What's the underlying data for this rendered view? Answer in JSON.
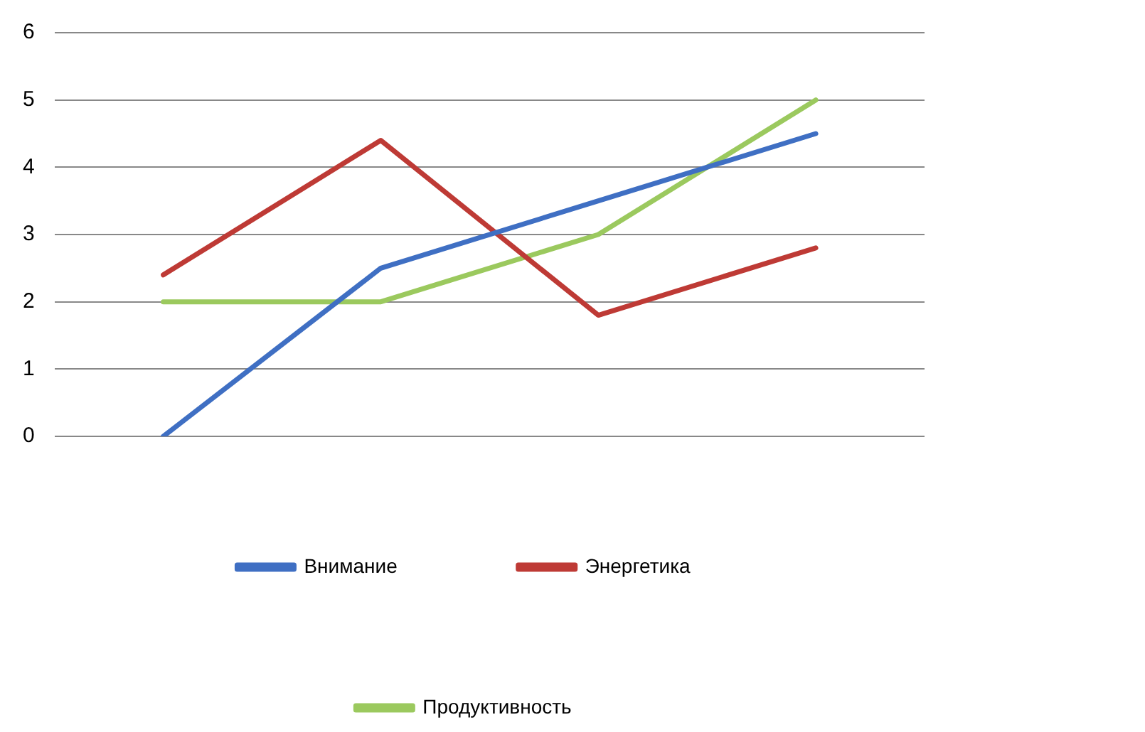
{
  "chart_data": {
    "type": "line",
    "categories": [
      null,
      null,
      null,
      null
    ],
    "series": [
      {
        "name": "Внимание",
        "color": "#3f6fc3",
        "values": [
          0,
          2.5,
          3.5,
          4.5
        ]
      },
      {
        "name": "Энергетика",
        "color": "#be3a35",
        "values": [
          2.4,
          4.4,
          1.8,
          2.8
        ]
      },
      {
        "name": "Продуктивность",
        "color": "#9bc95e",
        "values": [
          2,
          2,
          3,
          5
        ]
      }
    ],
    "ylim": [
      0,
      6
    ],
    "yticks": [
      0,
      1,
      2,
      3,
      4,
      5,
      6
    ],
    "grid": "y",
    "legend": "bottom",
    "tick_labels": "y",
    "marker": "none",
    "line_style": "solid"
  }
}
